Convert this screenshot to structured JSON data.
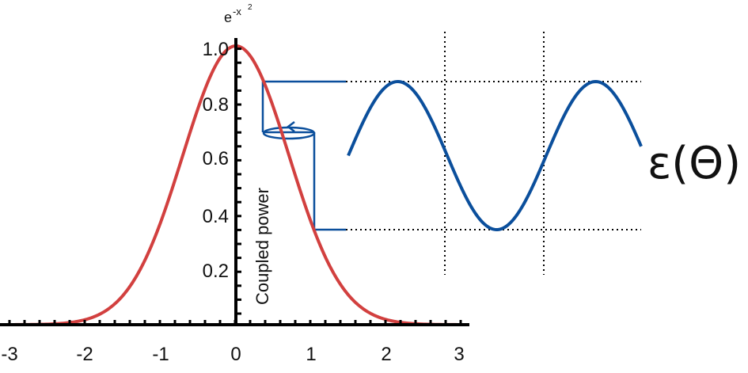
{
  "diagram": {
    "gaussian_axis": {
      "x_ticks": [
        "-3",
        "-2",
        "-1",
        "0",
        "1",
        "2",
        "3"
      ],
      "y_ticks": [
        "0.2",
        "0.4",
        "0.6",
        "0.8",
        "1.0"
      ],
      "y_title_base": "e",
      "y_title_exp": "-x",
      "y_title_exp_power": "2"
    },
    "coupled_label": "Coupled power",
    "epsilon_label": "ε(Θ)",
    "colors": {
      "gaussian": "#d2403f",
      "sine": "#0b4f9c",
      "axis": "#000000"
    }
  }
}
